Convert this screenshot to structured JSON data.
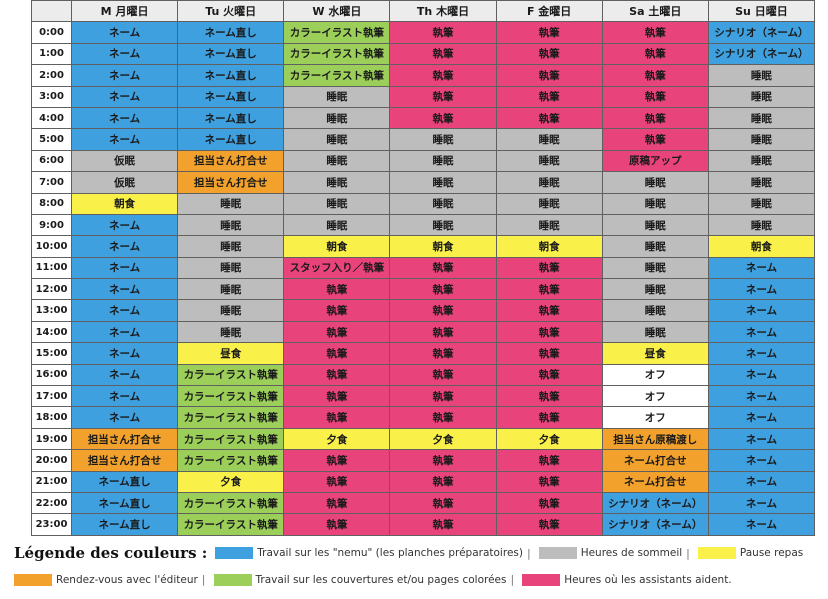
{
  "colors": {
    "blue": "#3fa0e0",
    "gray": "#bdbdbd",
    "yellow": "#f9f14a",
    "orange": "#f2a22c",
    "green": "#9bcf5a",
    "pink": "#e8437a",
    "white": "#ffffff"
  },
  "days": [
    "M 月曜日",
    "Tu 火曜日",
    "W 水曜日",
    "Th 木曜日",
    "F 金曜日",
    "Sa 土曜日",
    "Su 日曜日"
  ],
  "rows": [
    {
      "time": "0:00",
      "cells": [
        [
          "ネーム",
          "blue"
        ],
        [
          "ネーム直し",
          "blue"
        ],
        [
          "カラーイラスト執筆",
          "green"
        ],
        [
          "執筆",
          "pink"
        ],
        [
          "執筆",
          "pink"
        ],
        [
          "執筆",
          "pink"
        ],
        [
          "シナリオ（ネーム）",
          "blue"
        ]
      ]
    },
    {
      "time": "1:00",
      "cells": [
        [
          "ネーム",
          "blue"
        ],
        [
          "ネーム直し",
          "blue"
        ],
        [
          "カラーイラスト執筆",
          "green"
        ],
        [
          "執筆",
          "pink"
        ],
        [
          "執筆",
          "pink"
        ],
        [
          "執筆",
          "pink"
        ],
        [
          "シナリオ（ネーム）",
          "blue"
        ]
      ]
    },
    {
      "time": "2:00",
      "cells": [
        [
          "ネーム",
          "blue"
        ],
        [
          "ネーム直し",
          "blue"
        ],
        [
          "カラーイラスト執筆",
          "green"
        ],
        [
          "執筆",
          "pink"
        ],
        [
          "執筆",
          "pink"
        ],
        [
          "執筆",
          "pink"
        ],
        [
          "睡眠",
          "gray"
        ]
      ]
    },
    {
      "time": "3:00",
      "cells": [
        [
          "ネーム",
          "blue"
        ],
        [
          "ネーム直し",
          "blue"
        ],
        [
          "睡眠",
          "gray"
        ],
        [
          "執筆",
          "pink"
        ],
        [
          "執筆",
          "pink"
        ],
        [
          "執筆",
          "pink"
        ],
        [
          "睡眠",
          "gray"
        ]
      ]
    },
    {
      "time": "4:00",
      "cells": [
        [
          "ネーム",
          "blue"
        ],
        [
          "ネーム直し",
          "blue"
        ],
        [
          "睡眠",
          "gray"
        ],
        [
          "執筆",
          "pink"
        ],
        [
          "執筆",
          "pink"
        ],
        [
          "執筆",
          "pink"
        ],
        [
          "睡眠",
          "gray"
        ]
      ]
    },
    {
      "time": "5:00",
      "cells": [
        [
          "ネーム",
          "blue"
        ],
        [
          "ネーム直し",
          "blue"
        ],
        [
          "睡眠",
          "gray"
        ],
        [
          "睡眠",
          "gray"
        ],
        [
          "睡眠",
          "gray"
        ],
        [
          "執筆",
          "pink"
        ],
        [
          "睡眠",
          "gray"
        ]
      ]
    },
    {
      "time": "6:00",
      "cells": [
        [
          "仮眠",
          "gray"
        ],
        [
          "担当さん打合せ",
          "orange"
        ],
        [
          "睡眠",
          "gray"
        ],
        [
          "睡眠",
          "gray"
        ],
        [
          "睡眠",
          "gray"
        ],
        [
          "原稿アップ",
          "pink"
        ],
        [
          "睡眠",
          "gray"
        ]
      ]
    },
    {
      "time": "7:00",
      "cells": [
        [
          "仮眠",
          "gray"
        ],
        [
          "担当さん打合せ",
          "orange"
        ],
        [
          "睡眠",
          "gray"
        ],
        [
          "睡眠",
          "gray"
        ],
        [
          "睡眠",
          "gray"
        ],
        [
          "睡眠",
          "gray"
        ],
        [
          "睡眠",
          "gray"
        ]
      ]
    },
    {
      "time": "8:00",
      "cells": [
        [
          "朝食",
          "yellow"
        ],
        [
          "睡眠",
          "gray"
        ],
        [
          "睡眠",
          "gray"
        ],
        [
          "睡眠",
          "gray"
        ],
        [
          "睡眠",
          "gray"
        ],
        [
          "睡眠",
          "gray"
        ],
        [
          "睡眠",
          "gray"
        ]
      ]
    },
    {
      "time": "9:00",
      "cells": [
        [
          "ネーム",
          "blue"
        ],
        [
          "睡眠",
          "gray"
        ],
        [
          "睡眠",
          "gray"
        ],
        [
          "睡眠",
          "gray"
        ],
        [
          "睡眠",
          "gray"
        ],
        [
          "睡眠",
          "gray"
        ],
        [
          "睡眠",
          "gray"
        ]
      ]
    },
    {
      "time": "10:00",
      "cells": [
        [
          "ネーム",
          "blue"
        ],
        [
          "睡眠",
          "gray"
        ],
        [
          "朝食",
          "yellow"
        ],
        [
          "朝食",
          "yellow"
        ],
        [
          "朝食",
          "yellow"
        ],
        [
          "睡眠",
          "gray"
        ],
        [
          "朝食",
          "yellow"
        ]
      ]
    },
    {
      "time": "11:00",
      "cells": [
        [
          "ネーム",
          "blue"
        ],
        [
          "睡眠",
          "gray"
        ],
        [
          "スタッフ入り／執筆",
          "pink"
        ],
        [
          "執筆",
          "pink"
        ],
        [
          "執筆",
          "pink"
        ],
        [
          "睡眠",
          "gray"
        ],
        [
          "ネーム",
          "blue"
        ]
      ]
    },
    {
      "time": "12:00",
      "cells": [
        [
          "ネーム",
          "blue"
        ],
        [
          "睡眠",
          "gray"
        ],
        [
          "執筆",
          "pink"
        ],
        [
          "執筆",
          "pink"
        ],
        [
          "執筆",
          "pink"
        ],
        [
          "睡眠",
          "gray"
        ],
        [
          "ネーム",
          "blue"
        ]
      ]
    },
    {
      "time": "13:00",
      "cells": [
        [
          "ネーム",
          "blue"
        ],
        [
          "睡眠",
          "gray"
        ],
        [
          "執筆",
          "pink"
        ],
        [
          "執筆",
          "pink"
        ],
        [
          "執筆",
          "pink"
        ],
        [
          "睡眠",
          "gray"
        ],
        [
          "ネーム",
          "blue"
        ]
      ]
    },
    {
      "time": "14:00",
      "cells": [
        [
          "ネーム",
          "blue"
        ],
        [
          "睡眠",
          "gray"
        ],
        [
          "執筆",
          "pink"
        ],
        [
          "執筆",
          "pink"
        ],
        [
          "執筆",
          "pink"
        ],
        [
          "睡眠",
          "gray"
        ],
        [
          "ネーム",
          "blue"
        ]
      ]
    },
    {
      "time": "15:00",
      "cells": [
        [
          "ネーム",
          "blue"
        ],
        [
          "昼食",
          "yellow"
        ],
        [
          "執筆",
          "pink"
        ],
        [
          "執筆",
          "pink"
        ],
        [
          "執筆",
          "pink"
        ],
        [
          "昼食",
          "yellow"
        ],
        [
          "ネーム",
          "blue"
        ]
      ]
    },
    {
      "time": "16:00",
      "cells": [
        [
          "ネーム",
          "blue"
        ],
        [
          "カラーイラスト執筆",
          "green"
        ],
        [
          "執筆",
          "pink"
        ],
        [
          "執筆",
          "pink"
        ],
        [
          "執筆",
          "pink"
        ],
        [
          "オフ",
          "white"
        ],
        [
          "ネーム",
          "blue"
        ]
      ]
    },
    {
      "time": "17:00",
      "cells": [
        [
          "ネーム",
          "blue"
        ],
        [
          "カラーイラスト執筆",
          "green"
        ],
        [
          "執筆",
          "pink"
        ],
        [
          "執筆",
          "pink"
        ],
        [
          "執筆",
          "pink"
        ],
        [
          "オフ",
          "white"
        ],
        [
          "ネーム",
          "blue"
        ]
      ]
    },
    {
      "time": "18:00",
      "cells": [
        [
          "ネーム",
          "blue"
        ],
        [
          "カラーイラスト執筆",
          "green"
        ],
        [
          "執筆",
          "pink"
        ],
        [
          "執筆",
          "pink"
        ],
        [
          "執筆",
          "pink"
        ],
        [
          "オフ",
          "white"
        ],
        [
          "ネーム",
          "blue"
        ]
      ]
    },
    {
      "time": "19:00",
      "cells": [
        [
          "担当さん打合せ",
          "orange"
        ],
        [
          "カラーイラスト執筆",
          "green"
        ],
        [
          "夕食",
          "yellow"
        ],
        [
          "夕食",
          "yellow"
        ],
        [
          "夕食",
          "yellow"
        ],
        [
          "担当さん原稿渡し",
          "orange"
        ],
        [
          "ネーム",
          "blue"
        ]
      ]
    },
    {
      "time": "20:00",
      "cells": [
        [
          "担当さん打合せ",
          "orange"
        ],
        [
          "カラーイラスト執筆",
          "green"
        ],
        [
          "執筆",
          "pink"
        ],
        [
          "執筆",
          "pink"
        ],
        [
          "執筆",
          "pink"
        ],
        [
          "ネーム打合せ",
          "orange"
        ],
        [
          "ネーム",
          "blue"
        ]
      ]
    },
    {
      "time": "21:00",
      "cells": [
        [
          "ネーム直し",
          "blue"
        ],
        [
          "夕食",
          "yellow"
        ],
        [
          "執筆",
          "pink"
        ],
        [
          "執筆",
          "pink"
        ],
        [
          "執筆",
          "pink"
        ],
        [
          "ネーム打合せ",
          "orange"
        ],
        [
          "ネーム",
          "blue"
        ]
      ]
    },
    {
      "time": "22:00",
      "cells": [
        [
          "ネーム直し",
          "blue"
        ],
        [
          "カラーイラスト執筆",
          "green"
        ],
        [
          "執筆",
          "pink"
        ],
        [
          "執筆",
          "pink"
        ],
        [
          "執筆",
          "pink"
        ],
        [
          "シナリオ（ネーム）",
          "blue"
        ],
        [
          "ネーム",
          "blue"
        ]
      ]
    },
    {
      "time": "23:00",
      "cells": [
        [
          "ネーム直し",
          "blue"
        ],
        [
          "カラーイラスト執筆",
          "green"
        ],
        [
          "執筆",
          "pink"
        ],
        [
          "執筆",
          "pink"
        ],
        [
          "執筆",
          "pink"
        ],
        [
          "シナリオ（ネーム）",
          "blue"
        ],
        [
          "ネーム",
          "blue"
        ]
      ]
    }
  ],
  "legend": {
    "title": "Légende des couleurs :",
    "items": [
      {
        "color": "blue",
        "text": "Travail sur les \"nemu\" (les planches préparatoires)"
      },
      {
        "color": "gray",
        "text": "Heures de sommeil"
      },
      {
        "color": "yellow",
        "text": "Pause repas"
      },
      {
        "color": "orange",
        "text": "Rendez-vous avec l'éditeur"
      },
      {
        "color": "green",
        "text": "Travail sur les couvertures et/ou pages colorées"
      },
      {
        "color": "pink",
        "text": "Heures où les assistants aident."
      }
    ],
    "separator": "|"
  }
}
